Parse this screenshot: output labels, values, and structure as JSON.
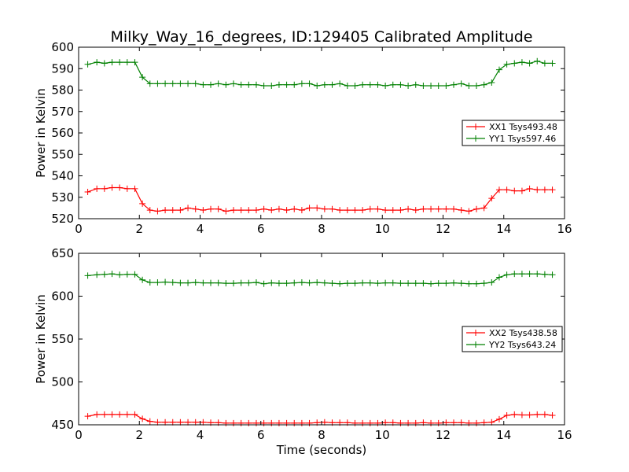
{
  "title": "Milky_Way_16_degrees, ID:129405 Calibrated Amplitude",
  "xlabel": "Time (seconds)",
  "colors": {
    "red": "#ff0000",
    "green": "#008000"
  },
  "chart_data": [
    {
      "type": "line",
      "title": "Milky_Way_16_degrees, ID:129405 Calibrated Amplitude",
      "xlabel": "",
      "ylabel": "Power in Kelvin",
      "xlim": [
        0,
        16
      ],
      "ylim": [
        520,
        600
      ],
      "xticks": [
        0,
        2,
        4,
        6,
        8,
        10,
        12,
        14,
        16
      ],
      "yticks": [
        520,
        530,
        540,
        550,
        560,
        570,
        580,
        590,
        600
      ],
      "legend_position": "center-right",
      "x": [
        0.3,
        0.6,
        0.85,
        1.1,
        1.35,
        1.6,
        1.85,
        2.1,
        2.35,
        2.6,
        2.85,
        3.1,
        3.35,
        3.6,
        3.85,
        4.1,
        4.35,
        4.6,
        4.85,
        5.1,
        5.35,
        5.6,
        5.85,
        6.1,
        6.35,
        6.6,
        6.85,
        7.1,
        7.35,
        7.6,
        7.85,
        8.1,
        8.35,
        8.6,
        8.85,
        9.1,
        9.35,
        9.6,
        9.85,
        10.1,
        10.35,
        10.6,
        10.85,
        11.1,
        11.35,
        11.6,
        11.85,
        12.1,
        12.35,
        12.6,
        12.85,
        13.1,
        13.35,
        13.6,
        13.85,
        14.1,
        14.35,
        14.6,
        14.85,
        15.1,
        15.35,
        15.6
      ],
      "series": [
        {
          "name": "XX1 Tsys493.48",
          "color": "#ff0000",
          "values": [
            532.5,
            534.0,
            534.0,
            534.5,
            534.5,
            534.0,
            534.0,
            527.0,
            524.0,
            523.5,
            524.0,
            524.0,
            524.0,
            525.0,
            524.5,
            524.0,
            524.5,
            524.5,
            523.5,
            524.0,
            524.0,
            524.0,
            524.0,
            524.5,
            524.0,
            524.5,
            524.0,
            524.5,
            524.0,
            525.0,
            525.0,
            524.5,
            524.5,
            524.0,
            524.0,
            524.0,
            524.0,
            524.5,
            524.5,
            524.0,
            524.0,
            524.0,
            524.5,
            524.0,
            524.5,
            524.5,
            524.5,
            524.5,
            524.5,
            524.0,
            523.5,
            524.5,
            525.0,
            529.5,
            533.5,
            533.5,
            533.0,
            533.0,
            534.0,
            533.5,
            533.5,
            533.5
          ]
        },
        {
          "name": "YY1 Tsys597.46",
          "color": "#008000",
          "values": [
            592.0,
            593.0,
            592.5,
            593.0,
            593.0,
            593.0,
            593.0,
            586.0,
            583.0,
            583.0,
            583.0,
            583.0,
            583.0,
            583.0,
            583.0,
            582.5,
            582.5,
            583.0,
            582.5,
            583.0,
            582.5,
            582.5,
            582.5,
            582.0,
            582.0,
            582.5,
            582.5,
            582.5,
            583.0,
            583.0,
            582.0,
            582.5,
            582.5,
            583.0,
            582.0,
            582.0,
            582.5,
            582.5,
            582.5,
            582.0,
            582.5,
            582.5,
            582.0,
            582.5,
            582.0,
            582.0,
            582.0,
            582.0,
            582.5,
            583.0,
            582.0,
            582.0,
            582.5,
            583.5,
            589.5,
            592.0,
            592.5,
            593.0,
            592.5,
            593.5,
            592.5,
            592.5
          ]
        }
      ]
    },
    {
      "type": "line",
      "title": "",
      "xlabel": "Time (seconds)",
      "ylabel": "Power in Kelvin",
      "xlim": [
        0,
        16
      ],
      "ylim": [
        450,
        650
      ],
      "xticks": [
        0,
        2,
        4,
        6,
        8,
        10,
        12,
        14,
        16
      ],
      "yticks": [
        450,
        500,
        550,
        600,
        650
      ],
      "legend_position": "center-right",
      "x": [
        0.3,
        0.6,
        0.85,
        1.1,
        1.35,
        1.6,
        1.85,
        2.1,
        2.35,
        2.6,
        2.85,
        3.1,
        3.35,
        3.6,
        3.85,
        4.1,
        4.35,
        4.6,
        4.85,
        5.1,
        5.35,
        5.6,
        5.85,
        6.1,
        6.35,
        6.6,
        6.85,
        7.1,
        7.35,
        7.6,
        7.85,
        8.1,
        8.35,
        8.6,
        8.85,
        9.1,
        9.35,
        9.6,
        9.85,
        10.1,
        10.35,
        10.6,
        10.85,
        11.1,
        11.35,
        11.6,
        11.85,
        12.1,
        12.35,
        12.6,
        12.85,
        13.1,
        13.35,
        13.6,
        13.85,
        14.1,
        14.35,
        14.6,
        14.85,
        15.1,
        15.35,
        15.6
      ],
      "series": [
        {
          "name": "XX2 Tsys438.58",
          "color": "#ff0000",
          "values": [
            460.0,
            462.0,
            462.0,
            462.0,
            462.0,
            462.0,
            462.0,
            457.0,
            454.0,
            453.0,
            453.0,
            453.0,
            453.0,
            453.0,
            453.0,
            453.0,
            452.5,
            452.5,
            452.0,
            452.0,
            452.0,
            452.0,
            452.0,
            452.0,
            452.0,
            452.0,
            452.0,
            452.0,
            452.0,
            452.0,
            452.5,
            453.0,
            452.5,
            452.5,
            452.5,
            452.0,
            452.0,
            452.0,
            452.0,
            452.5,
            452.5,
            452.0,
            452.0,
            452.0,
            452.5,
            452.0,
            452.0,
            452.5,
            452.5,
            452.5,
            452.0,
            452.0,
            452.5,
            453.0,
            456.5,
            461.0,
            462.0,
            461.5,
            461.5,
            462.0,
            462.0,
            461.0
          ]
        },
        {
          "name": "YY2 Tsys643.24",
          "color": "#008000",
          "values": [
            624.0,
            625.0,
            625.5,
            626.0,
            625.0,
            625.5,
            625.5,
            619.0,
            616.0,
            616.0,
            616.5,
            616.0,
            615.5,
            615.5,
            616.0,
            615.5,
            615.5,
            615.5,
            615.0,
            615.0,
            615.5,
            615.5,
            616.0,
            614.5,
            615.5,
            615.0,
            615.0,
            615.5,
            616.0,
            615.5,
            616.0,
            615.5,
            615.0,
            614.5,
            615.0,
            615.0,
            615.5,
            615.5,
            615.0,
            615.5,
            615.5,
            615.0,
            615.0,
            615.0,
            615.0,
            614.5,
            615.0,
            615.0,
            615.5,
            615.0,
            614.5,
            614.5,
            615.0,
            616.0,
            622.0,
            625.0,
            626.0,
            626.0,
            626.0,
            626.0,
            625.5,
            625.0
          ]
        }
      ]
    }
  ]
}
